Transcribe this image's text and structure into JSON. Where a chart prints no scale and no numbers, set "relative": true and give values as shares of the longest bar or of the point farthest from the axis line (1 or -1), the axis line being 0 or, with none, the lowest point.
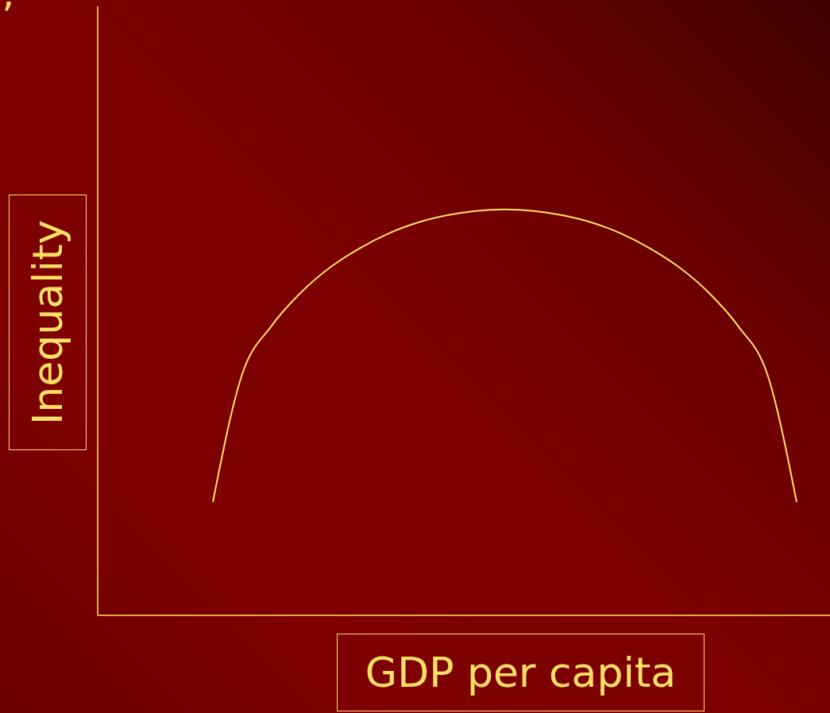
{
  "chart_data": {
    "type": "line",
    "relative": true,
    "xlabel": "GDP per capita",
    "ylabel": "Inequality",
    "annotations": [
      "’"
    ],
    "categories": [
      null,
      null,
      null,
      null,
      null,
      null,
      null,
      null,
      null,
      null,
      null,
      null,
      null,
      null,
      null,
      null,
      null,
      null,
      null,
      null,
      null
    ],
    "series": [
      {
        "color": "#ffe066",
        "values": [
          0.279,
          0.593,
          0.712,
          0.794,
          0.856,
          0.903,
          0.94,
          0.967,
          0.985,
          0.996,
          1.0,
          0.996,
          0.985,
          0.967,
          0.94,
          0.903,
          0.856,
          0.794,
          0.712,
          0.593,
          0.279
        ]
      }
    ],
    "grid": false,
    "legend": false,
    "marker": "none",
    "line_style": "solid"
  }
}
